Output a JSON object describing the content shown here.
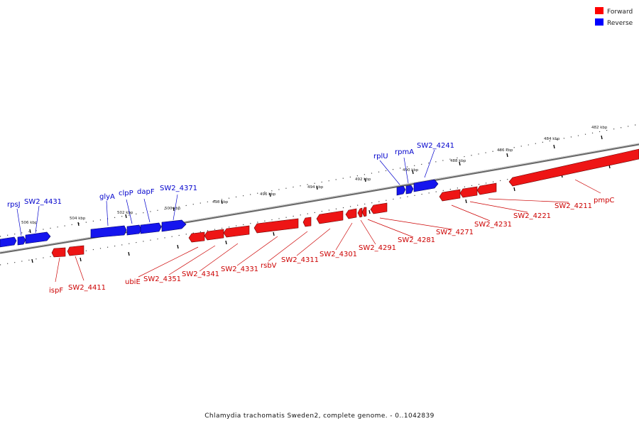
{
  "legend": [
    {
      "label": "Forward",
      "color": "#ff0000"
    },
    {
      "label": "Reverse",
      "color": "#0000ff"
    }
  ],
  "caption": "Chlamydia trachomatis Sweden2, complete genome. - 0..1042839",
  "kbp_ticks": [
    "482 kbp",
    "484 kbp",
    "486 kbp",
    "488 kbp",
    "490 kbp",
    "492 kbp",
    "494 kbp",
    "496 kbp",
    "498 kbp",
    "500 kbp",
    "502 kbp",
    "504 kbp",
    "506 kbp"
  ],
  "reverse_genes": [
    "rpsJ",
    "SW2_4431",
    "glyA",
    "clpP",
    "dapF",
    "SW2_4371",
    "rplU",
    "rpmA",
    "SW2_4241"
  ],
  "forward_genes": [
    "ispF",
    "SW2_4411",
    "ubiE",
    "SW2_4351",
    "SW2_4341",
    "SW2_4331",
    "rsbV",
    "SW2_4311",
    "SW2_4301",
    "SW2_4291",
    "SW2_4281",
    "SW2_4271",
    "SW2_4231",
    "SW2_4221",
    "SW2_4211",
    "pmpC"
  ]
}
